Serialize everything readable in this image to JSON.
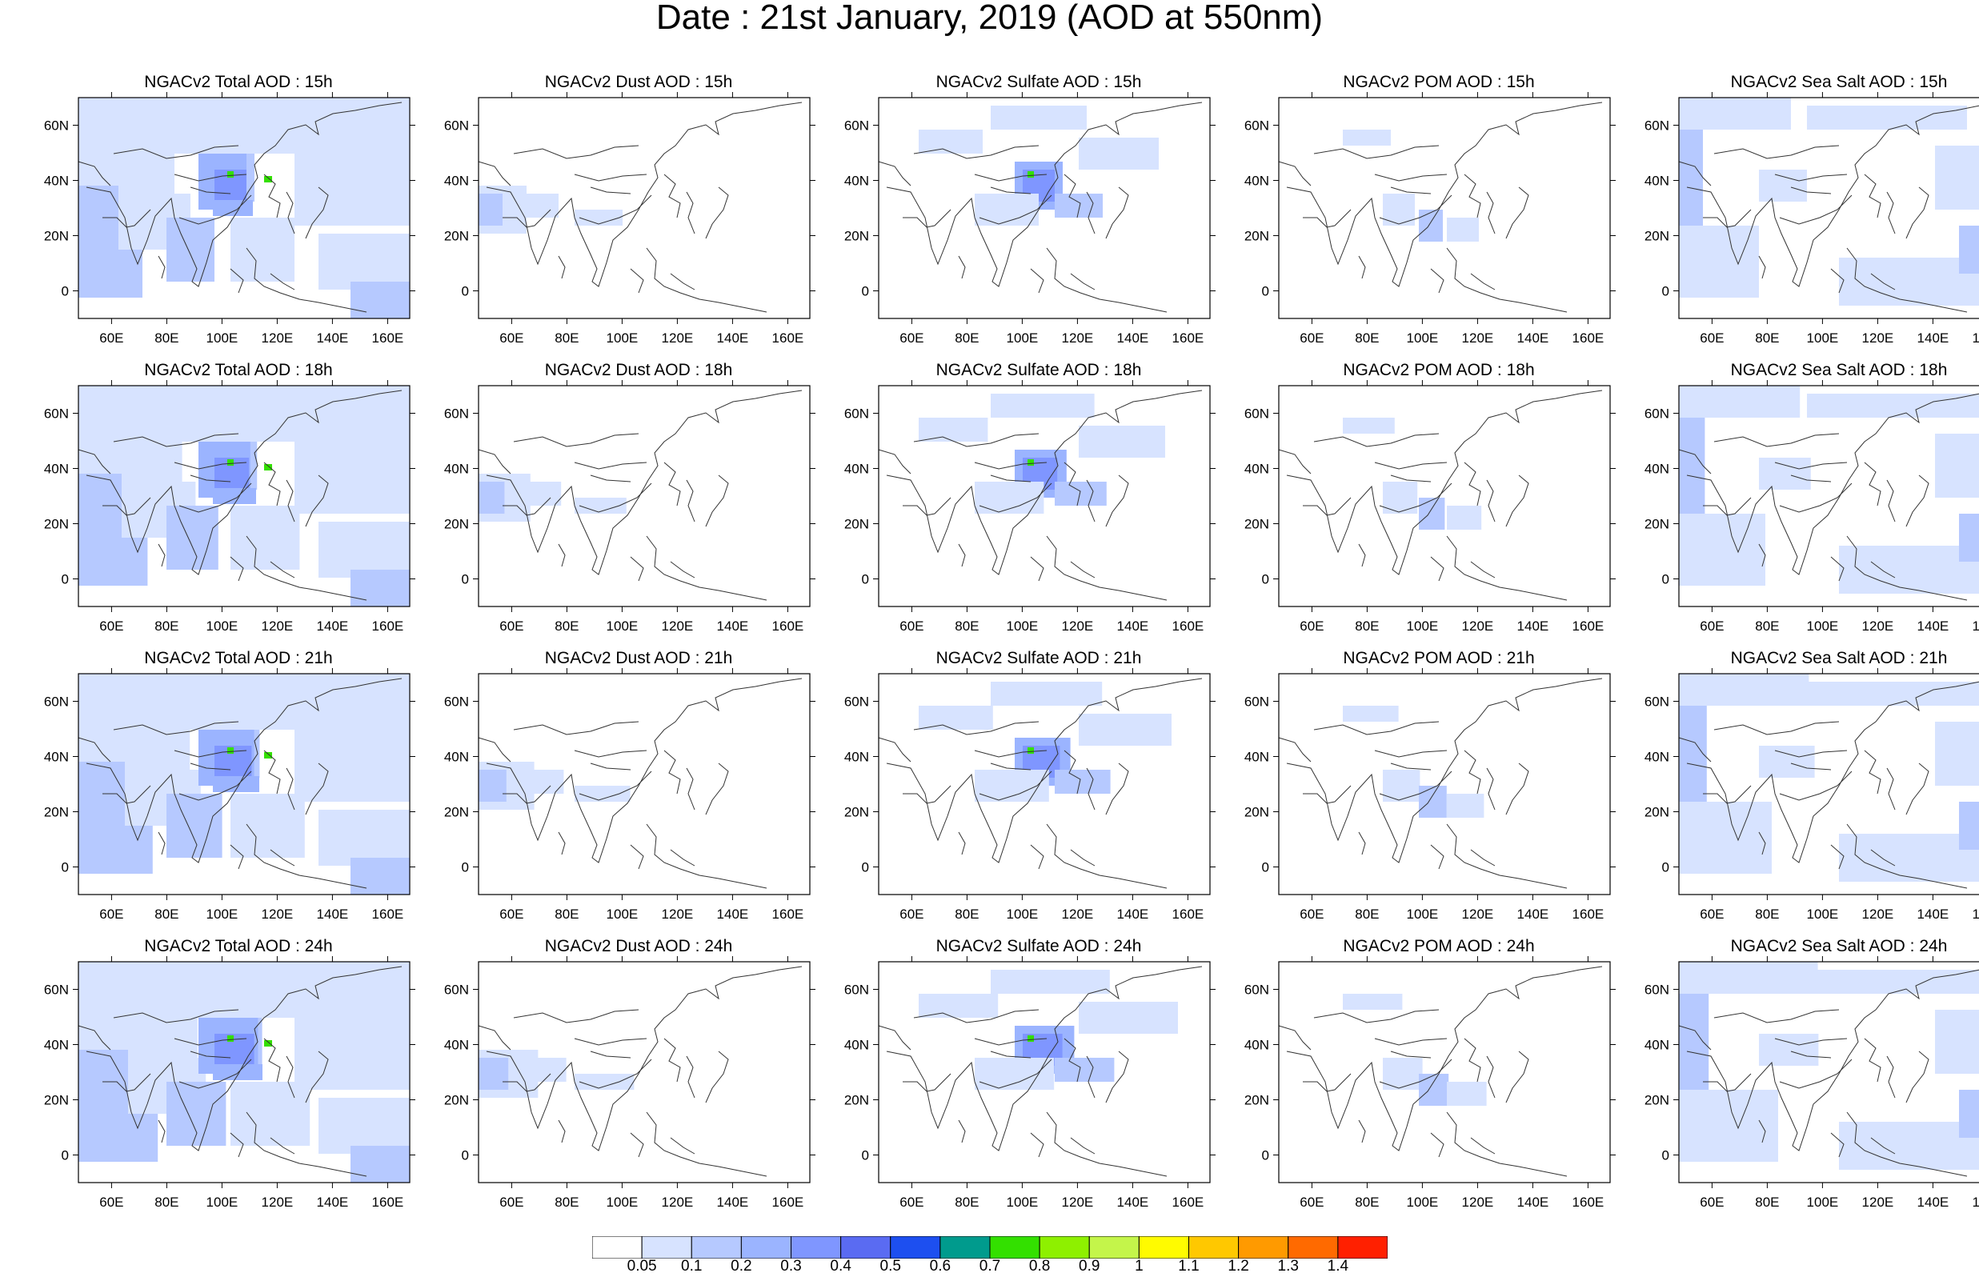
{
  "title": "Date : 21st January, 2019 (AOD at 550nm)",
  "row_titles": [
    [
      "NGACv2 Total AOD : 15h",
      "NGACv2 Dust AOD : 15h",
      "NGACv2 Sulfate AOD : 15h",
      "NGACv2 POM AOD : 15h",
      "NGACv2 Sea Salt AOD : 15h"
    ],
    [
      "NGACv2 Total AOD : 18h",
      "NGACv2 Dust AOD : 18h",
      "NGACv2 Sulfate AOD : 18h",
      "NGACv2 POM AOD : 18h",
      "NGACv2 Sea Salt AOD : 18h"
    ],
    [
      "NGACv2 Total AOD : 21h",
      "NGACv2 Dust AOD : 21h",
      "NGACv2 Sulfate AOD : 21h",
      "NGACv2 POM AOD : 21h",
      "NGACv2 Sea Salt AOD : 21h"
    ],
    [
      "NGACv2 Total AOD : 24h",
      "NGACv2 Dust AOD : 24h",
      "NGACv2 Sulfate AOD : 24h",
      "NGACv2 POM AOD : 24h",
      "NGACv2 Sea Salt  AOD : 24h"
    ]
  ],
  "species": [
    "total",
    "dust",
    "sulfate",
    "pom",
    "seasalt"
  ],
  "x_ticks": [
    "60E",
    "80E",
    "100E",
    "120E",
    "140E",
    "160E"
  ],
  "y_ticks": [
    "60N",
    "40N",
    "20N",
    "0"
  ],
  "x_tick_values": [
    60,
    80,
    100,
    120,
    140,
    160
  ],
  "y_tick_values": [
    60,
    40,
    20,
    0
  ],
  "lon_range": [
    48,
    168
  ],
  "lat_range": [
    -10,
    70
  ],
  "colorbar": {
    "labels": [
      "0.05",
      "0.1",
      "0.2",
      "0.3",
      "0.4",
      "0.5",
      "0.6",
      "0.7",
      "0.8",
      "0.9",
      "1",
      "1.1",
      "1.2",
      "1.3",
      "1.4"
    ],
    "colors": [
      "#ffffff",
      "#d7e3ff",
      "#b6c9ff",
      "#9bb4ff",
      "#7f96ff",
      "#5a6bf2",
      "#1d4ff0",
      "#009b8d",
      "#33e000",
      "#8ef000",
      "#c4f54a",
      "#fffb00",
      "#ffc800",
      "#ff9a00",
      "#ff6a00",
      "#ff2000"
    ]
  }
}
